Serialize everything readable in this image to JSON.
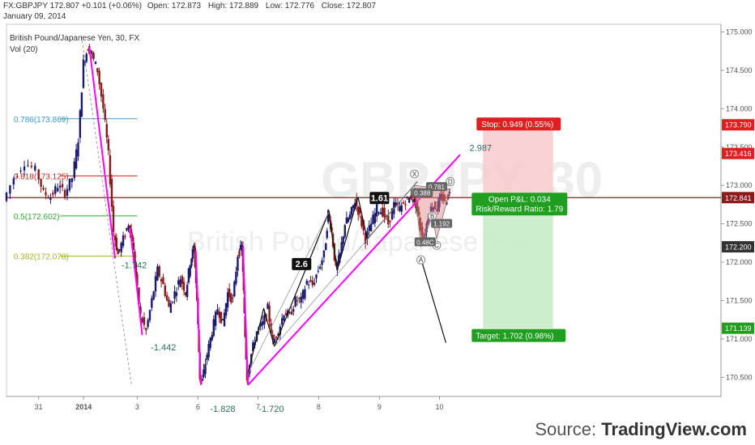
{
  "header": {
    "symbol": "FX:GBPJPY",
    "last": "172.807",
    "change": "+0.101 (+0.06%)",
    "open_label": "Open:",
    "open": "172.873",
    "high_label": "High:",
    "high": "172.889",
    "low_label": "Low:",
    "low": "172.776",
    "close_label": "Close:",
    "close": "172.807",
    "date": "January 09, 2014"
  },
  "source": {
    "prefix": "Source:",
    "brand": "TradingView.com"
  },
  "colors": {
    "up_candle": "#1a1a6e",
    "down_candle": "#8b1a1a",
    "pattern": "#ff00ff",
    "current_line": "#8b1a1a",
    "stop_zone": "#f7c8c8",
    "target_zone": "#c8ecc8",
    "stop_label": "#e02020",
    "target_label": "#1f9e1f"
  },
  "chart_data": {
    "type": "candlestick",
    "title": "British Pound/Japanese Yen, 30, FX",
    "indicator": "Vol (20)",
    "watermark": [
      "GBPJPY, 30",
      "British Pound/Japanese Yen"
    ],
    "ylim": [
      170.25,
      175.1
    ],
    "xlim": [
      0,
      100
    ],
    "y_ticks": [
      "175.000",
      "174.500",
      "174.000",
      "173.500",
      "173.000",
      "172.500",
      "172.000",
      "171.500",
      "171.000",
      "170.500"
    ],
    "x_ticks": [
      {
        "label": "31",
        "x": 4.5
      },
      {
        "label": "2014",
        "x": 10.8,
        "bold": true
      },
      {
        "label": "3",
        "x": 18.3
      },
      {
        "label": "6",
        "x": 26.8
      },
      {
        "label": "7",
        "x": 35.2
      },
      {
        "label": "8",
        "x": 43.7
      },
      {
        "label": "9",
        "x": 52.2
      },
      {
        "label": "10",
        "x": 60.6
      }
    ],
    "price_path": [
      [
        0,
        172.8
      ],
      [
        1.5,
        173.1
      ],
      [
        3,
        173.3
      ],
      [
        4.5,
        173.2
      ],
      [
        5.5,
        172.9
      ],
      [
        6.5,
        172.85
      ],
      [
        7.5,
        173.0
      ],
      [
        8.5,
        172.9
      ],
      [
        9.5,
        173.1
      ],
      [
        10.3,
        173.6
      ],
      [
        11,
        174.6
      ],
      [
        11.6,
        174.8
      ],
      [
        12.2,
        174.7
      ],
      [
        13,
        174.5
      ],
      [
        13.8,
        174.0
      ],
      [
        14.5,
        173.4
      ],
      [
        15.2,
        172.4
      ],
      [
        15.8,
        172.1
      ],
      [
        16.6,
        172.3
      ],
      [
        17.3,
        172.5
      ],
      [
        17.8,
        172.3
      ],
      [
        18.3,
        171.8
      ],
      [
        19.0,
        171.3
      ],
      [
        19.8,
        171.1
      ],
      [
        20.6,
        171.5
      ],
      [
        21.4,
        171.9
      ],
      [
        22.2,
        171.7
      ],
      [
        23.0,
        171.4
      ],
      [
        23.8,
        171.6
      ],
      [
        24.6,
        171.8
      ],
      [
        25.3,
        171.6
      ],
      [
        25.9,
        172.0
      ],
      [
        26.4,
        172.2
      ],
      [
        26.8,
        171.5
      ],
      [
        27.2,
        170.5
      ],
      [
        27.6,
        170.45
      ],
      [
        28.3,
        170.8
      ],
      [
        29.0,
        171.1
      ],
      [
        29.8,
        171.4
      ],
      [
        30.5,
        171.2
      ],
      [
        31.2,
        171.6
      ],
      [
        31.9,
        171.5
      ],
      [
        32.6,
        172.1
      ],
      [
        33.1,
        172.2
      ],
      [
        33.4,
        171.3
      ],
      [
        33.8,
        170.5
      ],
      [
        34.5,
        170.8
      ],
      [
        35.3,
        171.1
      ],
      [
        36.1,
        171.2
      ],
      [
        36.8,
        171.4
      ],
      [
        37.5,
        170.95
      ],
      [
        38.3,
        171.1
      ],
      [
        39.1,
        171.35
      ],
      [
        39.9,
        171.3
      ],
      [
        40.7,
        171.5
      ],
      [
        41.5,
        171.5
      ],
      [
        42.3,
        171.75
      ],
      [
        43.1,
        171.7
      ],
      [
        43.9,
        171.9
      ],
      [
        44.7,
        172.1
      ],
      [
        45.2,
        172.65
      ],
      [
        45.7,
        172.4
      ],
      [
        46.3,
        171.9
      ],
      [
        46.9,
        172.1
      ],
      [
        47.6,
        172.5
      ],
      [
        48.3,
        172.6
      ],
      [
        49.0,
        172.8
      ],
      [
        49.7,
        172.6
      ],
      [
        50.5,
        172.3
      ],
      [
        51.3,
        172.5
      ],
      [
        52.1,
        172.7
      ],
      [
        52.9,
        172.65
      ],
      [
        53.7,
        172.5
      ],
      [
        54.5,
        172.75
      ],
      [
        55.3,
        172.7
      ],
      [
        56.1,
        172.8
      ],
      [
        56.9,
        172.85
      ],
      [
        57.5,
        172.75
      ],
      [
        58.0,
        172.5
      ],
      [
        58.6,
        172.3
      ],
      [
        59.2,
        172.6
      ],
      [
        59.8,
        172.75
      ],
      [
        60.4,
        172.7
      ],
      [
        61.0,
        172.85
      ],
      [
        61.6,
        172.8
      ],
      [
        62.2,
        172.9
      ]
    ],
    "fibonacci": [
      {
        "label": "0.786(173.869)",
        "value": 173.869,
        "color": "#3a9bd0"
      },
      {
        "label": "0.618(173.125)",
        "value": 173.125,
        "color": "#d02020"
      },
      {
        "label": "0.5(172.602)",
        "value": 172.602,
        "color": "#2eaa2e"
      },
      {
        "label": "0.382(172.078)",
        "value": 172.078,
        "color": "#a6b21a"
      }
    ],
    "annotations": [
      {
        "text": "-1.442",
        "x": 20.2,
        "y": 170.85
      },
      {
        "text": "-1.828",
        "x": 28.5,
        "y": 170.05
      },
      {
        "text": "-1.720",
        "x": 35.3,
        "y": 170.05
      },
      {
        "text": "-1.742",
        "x": 16.1,
        "y": 171.92
      },
      {
        "text": "2.987",
        "x": 64.8,
        "y": 173.45
      }
    ],
    "boxed_labels": [
      {
        "text": "2.6",
        "x": 41.3,
        "y": 171.97
      },
      {
        "text": "1.61",
        "x": 52.2,
        "y": 172.83
      }
    ],
    "pattern_points": [
      {
        "text": "X",
        "x": 57.1,
        "y": 173.15
      },
      {
        "text": "A",
        "x": 58.0,
        "y": 172.03
      },
      {
        "text": "B",
        "x": 59.6,
        "y": 172.6
      },
      {
        "text": "C",
        "x": 60.2,
        "y": 172.22
      },
      {
        "text": "D",
        "x": 62.1,
        "y": 173.05
      }
    ],
    "pattern_ratios": [
      {
        "text": "0.781",
        "x": 60.2,
        "y": 172.98
      },
      {
        "text": "0.388",
        "x": 58.2,
        "y": 172.9
      },
      {
        "text": "1.192",
        "x": 60.9,
        "y": 172.5
      },
      {
        "text": "0.48C",
        "x": 58.6,
        "y": 172.26
      }
    ],
    "current_price": 172.841,
    "price_labels": [
      {
        "text": "173.790",
        "value": 173.79,
        "kind": "stop"
      },
      {
        "text": "173.416",
        "value": 173.416,
        "kind": "stop2"
      },
      {
        "text": "172.841",
        "value": 172.841,
        "kind": "current"
      },
      {
        "text": "172.200",
        "value": 172.2,
        "kind": "dark"
      },
      {
        "text": "171.139",
        "value": 171.139,
        "kind": "target"
      }
    ],
    "position": {
      "entry": 172.841,
      "stop": 173.79,
      "target": 171.139,
      "x_start": 66.7,
      "x_end": 76.5,
      "stop_text": "Stop: 0.949 (0.55%)",
      "pnl_text": "Open P&L: 0.034",
      "rr_text": "Risk/Reward Ratio: 1.79",
      "target_text": "Target: 1.702 (0.98%)"
    }
  }
}
